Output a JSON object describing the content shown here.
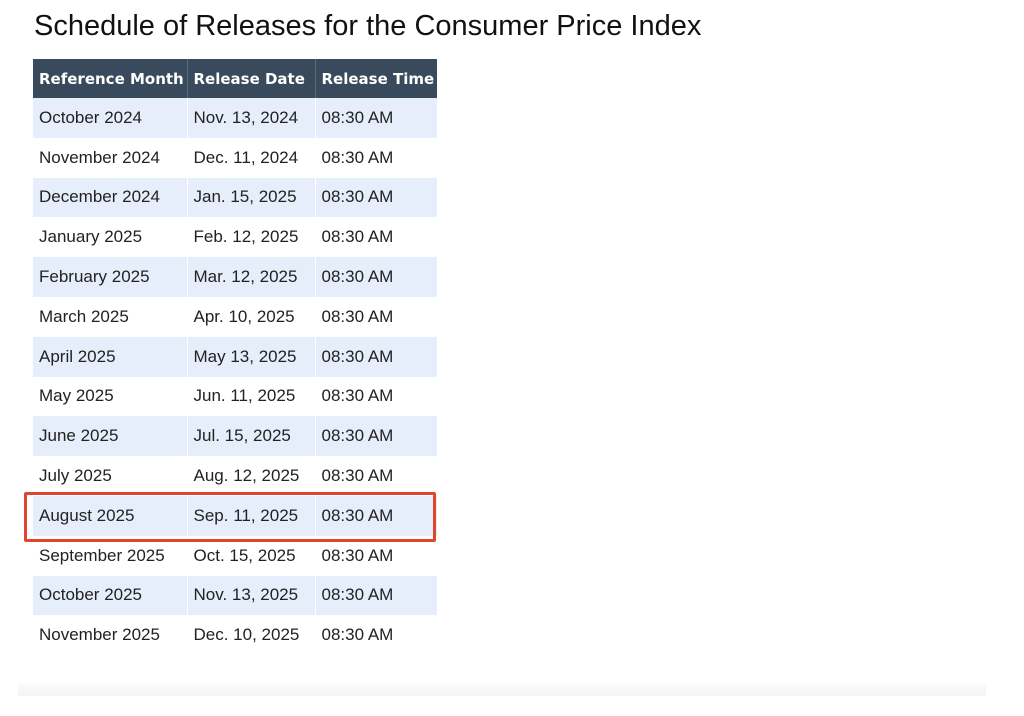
{
  "page": {
    "title": "Schedule of Releases for the Consumer Price Index"
  },
  "table": {
    "headers": [
      "Reference Month",
      "Release Date",
      "Release Time"
    ],
    "rows": [
      [
        "October 2024",
        "Nov. 13, 2024",
        "08:30 AM"
      ],
      [
        "November 2024",
        "Dec. 11, 2024",
        "08:30 AM"
      ],
      [
        "December 2024",
        "Jan. 15, 2025",
        "08:30 AM"
      ],
      [
        "January 2025",
        "Feb. 12, 2025",
        "08:30 AM"
      ],
      [
        "February 2025",
        "Mar. 12, 2025",
        "08:30 AM"
      ],
      [
        "March 2025",
        "Apr. 10, 2025",
        "08:30 AM"
      ],
      [
        "April 2025",
        "May 13, 2025",
        "08:30 AM"
      ],
      [
        "May 2025",
        "Jun. 11, 2025",
        "08:30 AM"
      ],
      [
        "June 2025",
        "Jul. 15, 2025",
        "08:30 AM"
      ],
      [
        "July 2025",
        "Aug. 12, 2025",
        "08:30 AM"
      ],
      [
        "August 2025",
        "Sep. 11, 2025",
        "08:30 AM"
      ],
      [
        "September 2025",
        "Oct. 15, 2025",
        "08:30 AM"
      ],
      [
        "October 2025",
        "Nov. 13, 2025",
        "08:30 AM"
      ],
      [
        "November 2025",
        "Dec. 10, 2025",
        "08:30 AM"
      ]
    ],
    "highlighted_row": 10
  },
  "colors": {
    "header_bg": "#384a5c",
    "stripe_bg": "#e6eefc",
    "highlight_border": "#e0452f"
  }
}
